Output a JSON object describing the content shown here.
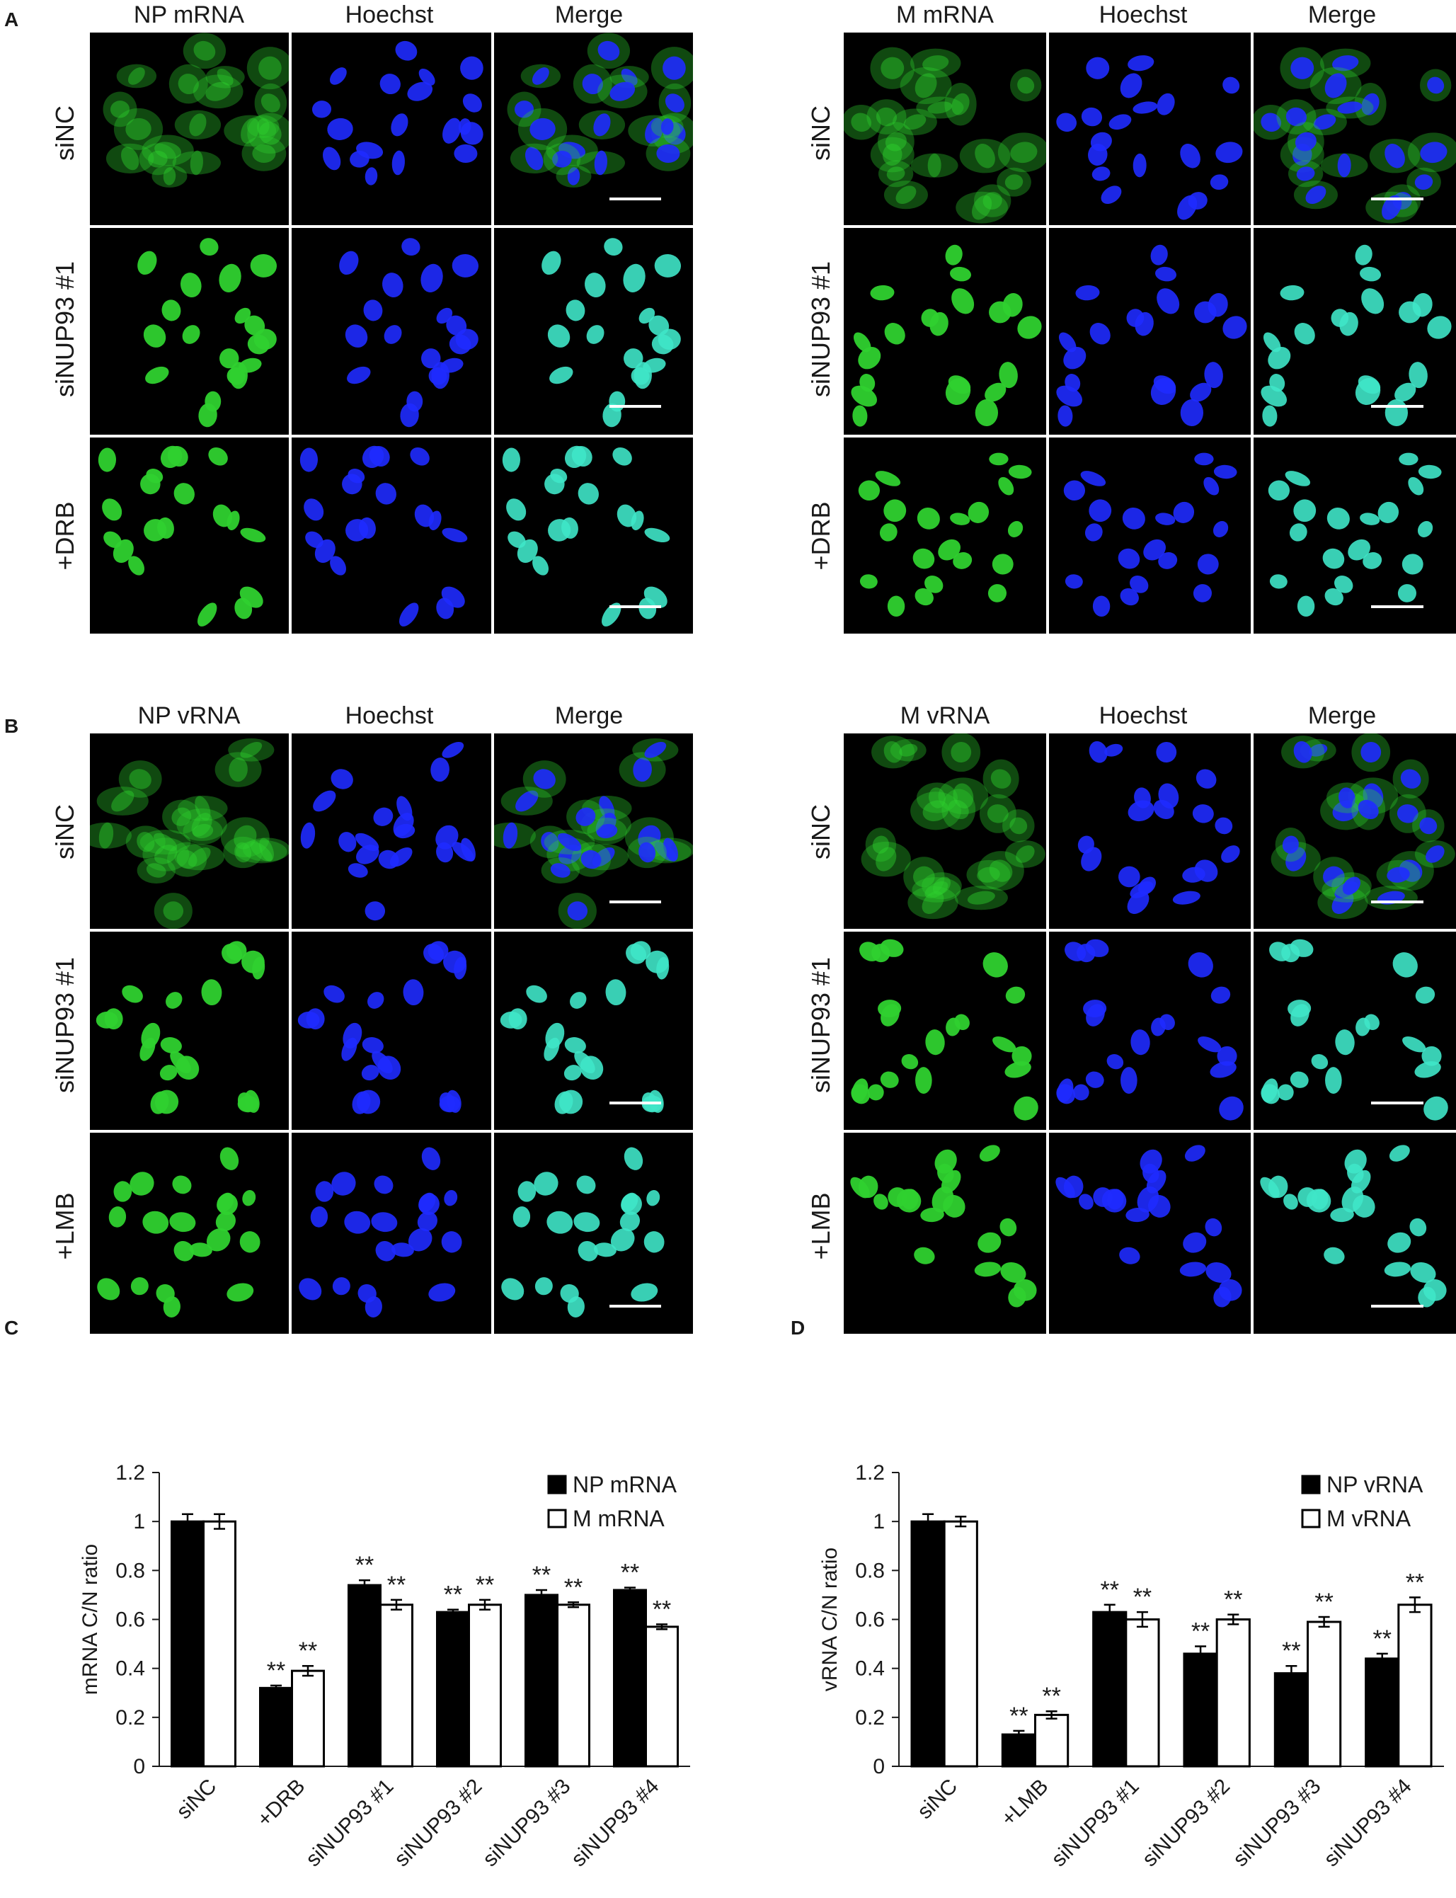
{
  "panels": {
    "A": {
      "letter": "A",
      "blocks": [
        {
          "columns": [
            "NP mRNA",
            "Hoechst",
            "Merge"
          ],
          "rows": [
            "siNC",
            "siNUP93 #1",
            "+DRB"
          ]
        },
        {
          "columns": [
            "M mRNA",
            "Hoechst",
            "Merge"
          ],
          "rows": [
            "siNC",
            "siNUP93 #1",
            "+DRB"
          ]
        }
      ]
    },
    "B": {
      "letter": "B",
      "blocks": [
        {
          "columns": [
            "NP vRNA",
            "Hoechst",
            "Merge"
          ],
          "rows": [
            "siNC",
            "siNUP93 #1",
            "+LMB"
          ]
        },
        {
          "columns": [
            "M vRNA",
            "Hoechst",
            "Merge"
          ],
          "rows": [
            "siNC",
            "siNUP93 #1",
            "+LMB"
          ]
        }
      ]
    },
    "C": {
      "letter": "C"
    },
    "D": {
      "letter": "D"
    }
  },
  "colors": {
    "green_channel": "#2fd12f",
    "blue_channel": "#1f2bff",
    "merge_cyan": "#3fe6c8",
    "bar_fill_dark": "#000000",
    "bar_fill_light": "#ffffff"
  },
  "chart_data": [
    {
      "type": "bar",
      "panel": "C",
      "ylabel": "mRNA C/N ratio",
      "ylim": [
        0,
        1.2
      ],
      "yticks": [
        "0",
        "0.2",
        "0.4",
        "0.6",
        "0.8",
        "1",
        "1.2"
      ],
      "categories": [
        "siNC",
        "+DRB",
        "siNUP93 #1",
        "siNUP93 #2",
        "siNUP93 #3",
        "siNUP93 #4"
      ],
      "series": [
        {
          "name": "NP mRNA",
          "values": [
            1.0,
            0.32,
            0.74,
            0.63,
            0.7,
            0.72
          ],
          "errors": [
            0.03,
            0.01,
            0.02,
            0.01,
            0.02,
            0.01
          ]
        },
        {
          "name": "M mRNA",
          "values": [
            1.0,
            0.39,
            0.66,
            0.66,
            0.66,
            0.57
          ],
          "errors": [
            0.03,
            0.02,
            0.02,
            0.02,
            0.01,
            0.01
          ]
        }
      ],
      "significance": [
        [
          "",
          "**",
          "**",
          "**",
          "**",
          "**"
        ],
        [
          "",
          "**",
          "**",
          "**",
          "**",
          "**"
        ]
      ],
      "legend_position": "top-right",
      "grid": false
    },
    {
      "type": "bar",
      "panel": "D",
      "ylabel": "vRNA C/N ratio",
      "ylim": [
        0,
        1.2
      ],
      "yticks": [
        "0",
        "0.2",
        "0.4",
        "0.6",
        "0.8",
        "1",
        "1.2"
      ],
      "categories": [
        "siNC",
        "+LMB",
        "siNUP93 #1",
        "siNUP93 #2",
        "siNUP93 #3",
        "siNUP93 #4"
      ],
      "series": [
        {
          "name": "NP vRNA",
          "values": [
            1.0,
            0.13,
            0.63,
            0.46,
            0.38,
            0.44
          ],
          "errors": [
            0.03,
            0.015,
            0.03,
            0.03,
            0.03,
            0.02
          ]
        },
        {
          "name": "M vRNA",
          "values": [
            1.0,
            0.21,
            0.6,
            0.6,
            0.59,
            0.66
          ],
          "errors": [
            0.02,
            0.015,
            0.03,
            0.02,
            0.02,
            0.03
          ]
        }
      ],
      "significance": [
        [
          "",
          "**",
          "**",
          "**",
          "**",
          "**"
        ],
        [
          "",
          "**",
          "**",
          "**",
          "**",
          "**"
        ]
      ],
      "legend_position": "top-right",
      "grid": false
    }
  ]
}
